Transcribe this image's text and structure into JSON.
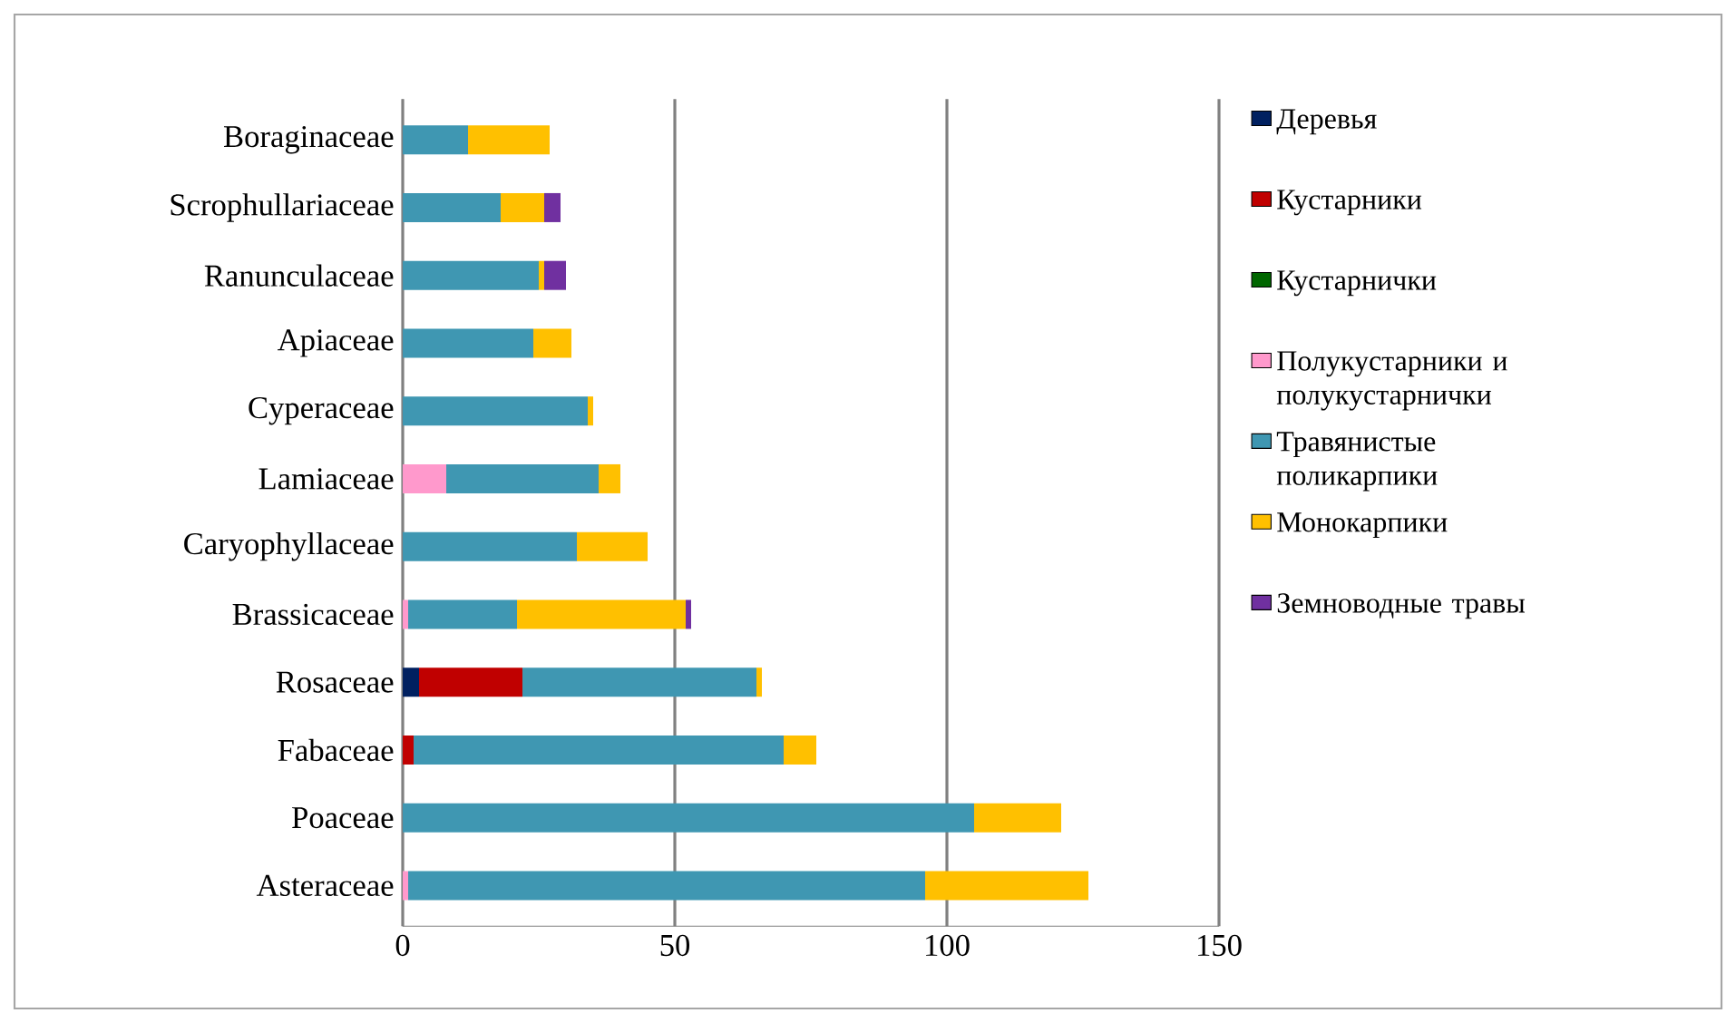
{
  "chart_data": {
    "type": "bar",
    "orientation": "horizontal",
    "stacked": true,
    "categories": [
      "Boraginaceae",
      "Scrophullariaceae",
      "Ranunculaceae",
      "Apiaceae",
      "Cyperaceae",
      "Lamiaceae",
      "Caryophyllaceae",
      "Brassicaceae",
      "Rosaceae",
      "Fabaceae",
      "Poaceae",
      "Asteraceae"
    ],
    "series": [
      {
        "name": "Деревья",
        "color": "#002060",
        "values": [
          0,
          0,
          0,
          0,
          0,
          0,
          0,
          0,
          3,
          0,
          0,
          0
        ]
      },
      {
        "name": "Кустарники",
        "color": "#c00000",
        "values": [
          0,
          0,
          0,
          0,
          0,
          0,
          0,
          0,
          19,
          2,
          0,
          0
        ]
      },
      {
        "name": "Кустарнички",
        "color": "#006600",
        "values": [
          0,
          0,
          0,
          0,
          0,
          0,
          0,
          0,
          0,
          0,
          0,
          0
        ]
      },
      {
        "name": "Полукустарники и полукустарнички",
        "color": "#ff99cc",
        "values": [
          0,
          0,
          0,
          0,
          0,
          8,
          0,
          1,
          0,
          0,
          0,
          1
        ]
      },
      {
        "name": "Травянистые поликарпики",
        "color": "#3f97b2",
        "values": [
          12,
          18,
          25,
          24,
          34,
          28,
          32,
          20,
          43,
          68,
          105,
          95
        ]
      },
      {
        "name": "Монокарпики",
        "color": "#ffc000",
        "values": [
          15,
          8,
          1,
          7,
          1,
          4,
          13,
          31,
          1,
          6,
          16,
          30
        ]
      },
      {
        "name": "Земноводные травы",
        "color": "#7030a0",
        "values": [
          0,
          3,
          4,
          0,
          0,
          0,
          0,
          1,
          0,
          0,
          0,
          0
        ]
      }
    ],
    "xlim": [
      0,
      150
    ],
    "xticks": [
      0,
      50,
      100,
      150
    ],
    "grid": "x",
    "legend": "right"
  }
}
